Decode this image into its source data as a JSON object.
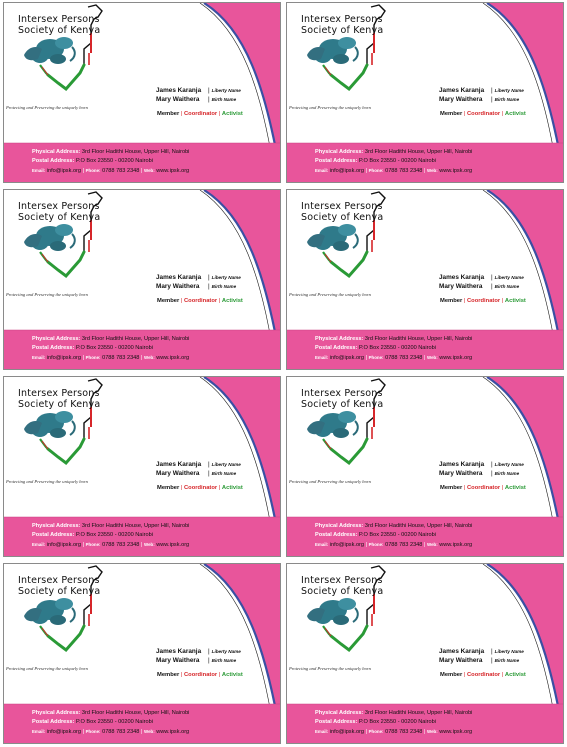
{
  "org": {
    "name_line1": "Intersex Persons",
    "name_line2": "Society of Kenya",
    "tagline": "Protecting and Preserving the uniquely born"
  },
  "people": [
    {
      "name": "James Karanja",
      "tag": "Liberty Name"
    },
    {
      "name": "Mary Waithera",
      "tag": "Birth Name"
    }
  ],
  "roles": {
    "member": "Member",
    "coordinator": "Coordinator",
    "activist": "Activist"
  },
  "contact": {
    "physical_label": "Physical Address:",
    "physical_value": "3rd Floor Hadithi House, Upper Hill, Nairobi",
    "postal_label": "Postal Address:",
    "postal_value": "P.O Box 23550 - 00200 Nairobi",
    "email_label": "Email:",
    "email_value": "info@ipsk.org",
    "phone_label": "Phone:",
    "phone_value": "0788 783 2348",
    "web_label": "Web:",
    "web_value": "www.ipsk.org"
  },
  "colors": {
    "brand_pink": "#e8559b",
    "swoosh_blue": "#3b4fa3",
    "kenya_red": "#d6262a",
    "kenya_green": "#2a9a36",
    "figure_teal": "#2f7a8a"
  },
  "icons": [
    "kenya-map-icon",
    "embryo-figure-icon"
  ]
}
